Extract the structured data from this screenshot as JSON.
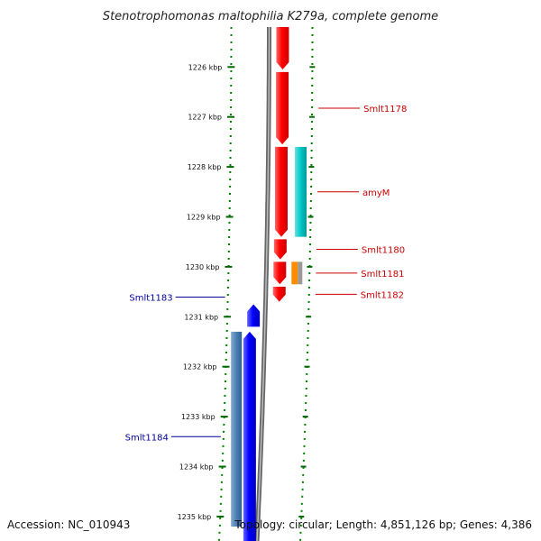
{
  "title": "Stenotrophomonas maltophilia K279a, complete genome",
  "footer": {
    "accession": "Accession: NC_010943",
    "topology": "Topology: circular; Length: 4,851,126 bp; Genes: 4,386"
  },
  "axis": {
    "unit": "kbp",
    "ticks": [
      "1226 kbp",
      "1227 kbp",
      "1228 kbp",
      "1229 kbp",
      "1230 kbp",
      "1231 kbp",
      "1232 kbp",
      "1233 kbp",
      "1234 kbp",
      "1235 kbp"
    ]
  },
  "colors": {
    "forward_gene": "#ff0000",
    "reverse_gene": "#0000ff",
    "backbone": "#888888",
    "track_dots": "#008000",
    "cyan_feature": "#00c8c8",
    "orange_feature": "#ff8c00",
    "steelblue_feature": "#4a7fb5"
  },
  "chart_data": {
    "type": "genome-map",
    "view_range_kbp": [
      1225.2,
      1235.5
    ],
    "genes": [
      {
        "label": "",
        "strand": "+",
        "start_kbp": 1225.2,
        "end_kbp": 1226.05,
        "color": "#ff0000"
      },
      {
        "label": "Smlt1178",
        "strand": "+",
        "start_kbp": 1226.1,
        "end_kbp": 1227.55,
        "color": "#ff0000"
      },
      {
        "label": "amyM",
        "strand": "+",
        "start_kbp": 1227.6,
        "end_kbp": 1229.4,
        "color": "#ff0000"
      },
      {
        "label": "Smlt1180",
        "strand": "+",
        "start_kbp": 1229.45,
        "end_kbp": 1229.85,
        "color": "#ff0000"
      },
      {
        "label": "Smlt1181",
        "strand": "+",
        "start_kbp": 1229.9,
        "end_kbp": 1230.35,
        "color": "#ff0000"
      },
      {
        "label": "Smlt1182",
        "strand": "+",
        "start_kbp": 1230.4,
        "end_kbp": 1230.7,
        "color": "#ff0000"
      },
      {
        "label": "Smlt1183",
        "strand": "-",
        "start_kbp": 1230.75,
        "end_kbp": 1231.2,
        "color": "#0000ff"
      },
      {
        "label": "Smlt1184",
        "strand": "-",
        "start_kbp": 1231.3,
        "end_kbp": 1235.5,
        "color": "#0000ff"
      }
    ],
    "features": [
      {
        "label": "",
        "start_kbp": 1227.6,
        "end_kbp": 1229.4,
        "color": "#00c8c8"
      },
      {
        "label": "",
        "start_kbp": 1229.9,
        "end_kbp": 1230.35,
        "color": "#ff8c00"
      },
      {
        "label": "",
        "start_kbp": 1231.3,
        "end_kbp": 1235.2,
        "color": "#4a7fb5"
      }
    ]
  }
}
